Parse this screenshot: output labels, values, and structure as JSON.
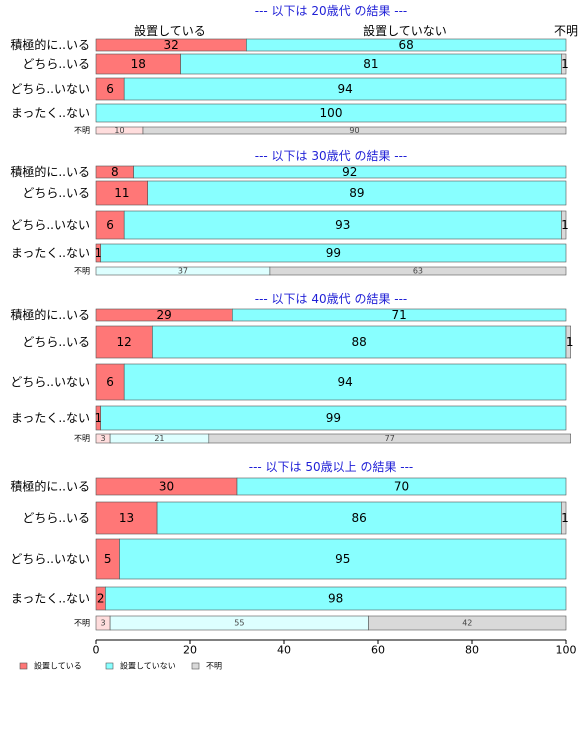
{
  "chart_data": {
    "type": "bar",
    "orientation": "horizontal",
    "stacked": true,
    "xlim": [
      0,
      100
    ],
    "x_ticks": [
      "0",
      "20",
      "40",
      "60",
      "80",
      "100"
    ],
    "column_labels": [
      "設置している",
      "設置していない",
      "不明"
    ],
    "legend": {
      "position": "bottom-left",
      "entries": [
        {
          "label": "設置している",
          "color": "#ff7777"
        },
        {
          "label": "設置していない",
          "color": "#88ffff"
        },
        {
          "label": "不明",
          "color": "#d9d9d9"
        }
      ]
    },
    "colors": {
      "installed": "#ff7777",
      "not_installed": "#88ffff",
      "unknown": "#d9d9d9",
      "installed_light": "#ffdddd",
      "not_installed_light": "#ddffff",
      "title": "#1f1fd6"
    },
    "panels": [
      {
        "title": "--- 以下は 20歳代 の結果 ---",
        "categories": [
          "積極的に..いる",
          "どちら..いる",
          "どちら..いない",
          "まったく..ない"
        ],
        "series": [
          {
            "name": "設置している",
            "values": [
              32,
              18,
              6,
              0
            ]
          },
          {
            "name": "設置していない",
            "values": [
              68,
              81,
              94,
              100
            ]
          },
          {
            "name": "不明",
            "values": [
              0,
              1,
              0,
              0
            ]
          }
        ],
        "unknown_row": {
          "label": "不明",
          "values": [
            10,
            0,
            90
          ],
          "labels": [
            "10",
            "",
            "90"
          ]
        }
      },
      {
        "title": "--- 以下は 30歳代 の結果 ---",
        "categories": [
          "積極的に..いる",
          "どちら..いる",
          "どちら..いない",
          "まったく..ない"
        ],
        "series": [
          {
            "name": "設置している",
            "values": [
              8,
              11,
              6,
              1
            ]
          },
          {
            "name": "設置していない",
            "values": [
              92,
              89,
              93,
              99
            ]
          },
          {
            "name": "不明",
            "values": [
              0,
              0,
              1,
              0
            ]
          }
        ],
        "unknown_row": {
          "label": "不明",
          "values": [
            0,
            37,
            63
          ],
          "labels": [
            "",
            "37",
            "63"
          ]
        }
      },
      {
        "title": "--- 以下は 40歳代 の結果 ---",
        "categories": [
          "積極的に..いる",
          "どちら..いる",
          "どちら..いない",
          "まったく..ない"
        ],
        "series": [
          {
            "name": "設置している",
            "values": [
              29,
              12,
              6,
              1
            ]
          },
          {
            "name": "設置していない",
            "values": [
              71,
              88,
              94,
              99
            ]
          },
          {
            "name": "不明",
            "values": [
              0,
              1,
              0,
              0
            ]
          }
        ],
        "unknown_row": {
          "label": "不明",
          "values": [
            3,
            21,
            77
          ],
          "labels": [
            "3",
            "21",
            "77"
          ]
        }
      },
      {
        "title": "--- 以下は 50歳以上 の結果 ---",
        "categories": [
          "積極的に..いる",
          "どちら..いる",
          "どちら..いない",
          "まったく..ない"
        ],
        "series": [
          {
            "name": "設置している",
            "values": [
              30,
              13,
              5,
              2
            ]
          },
          {
            "name": "設置していない",
            "values": [
              70,
              86,
              95,
              98
            ]
          },
          {
            "name": "不明",
            "values": [
              0,
              1,
              0,
              0
            ]
          }
        ],
        "unknown_row": {
          "label": "不明",
          "values": [
            3,
            55,
            42
          ],
          "labels": [
            "3",
            "55",
            "42"
          ]
        }
      }
    ]
  }
}
